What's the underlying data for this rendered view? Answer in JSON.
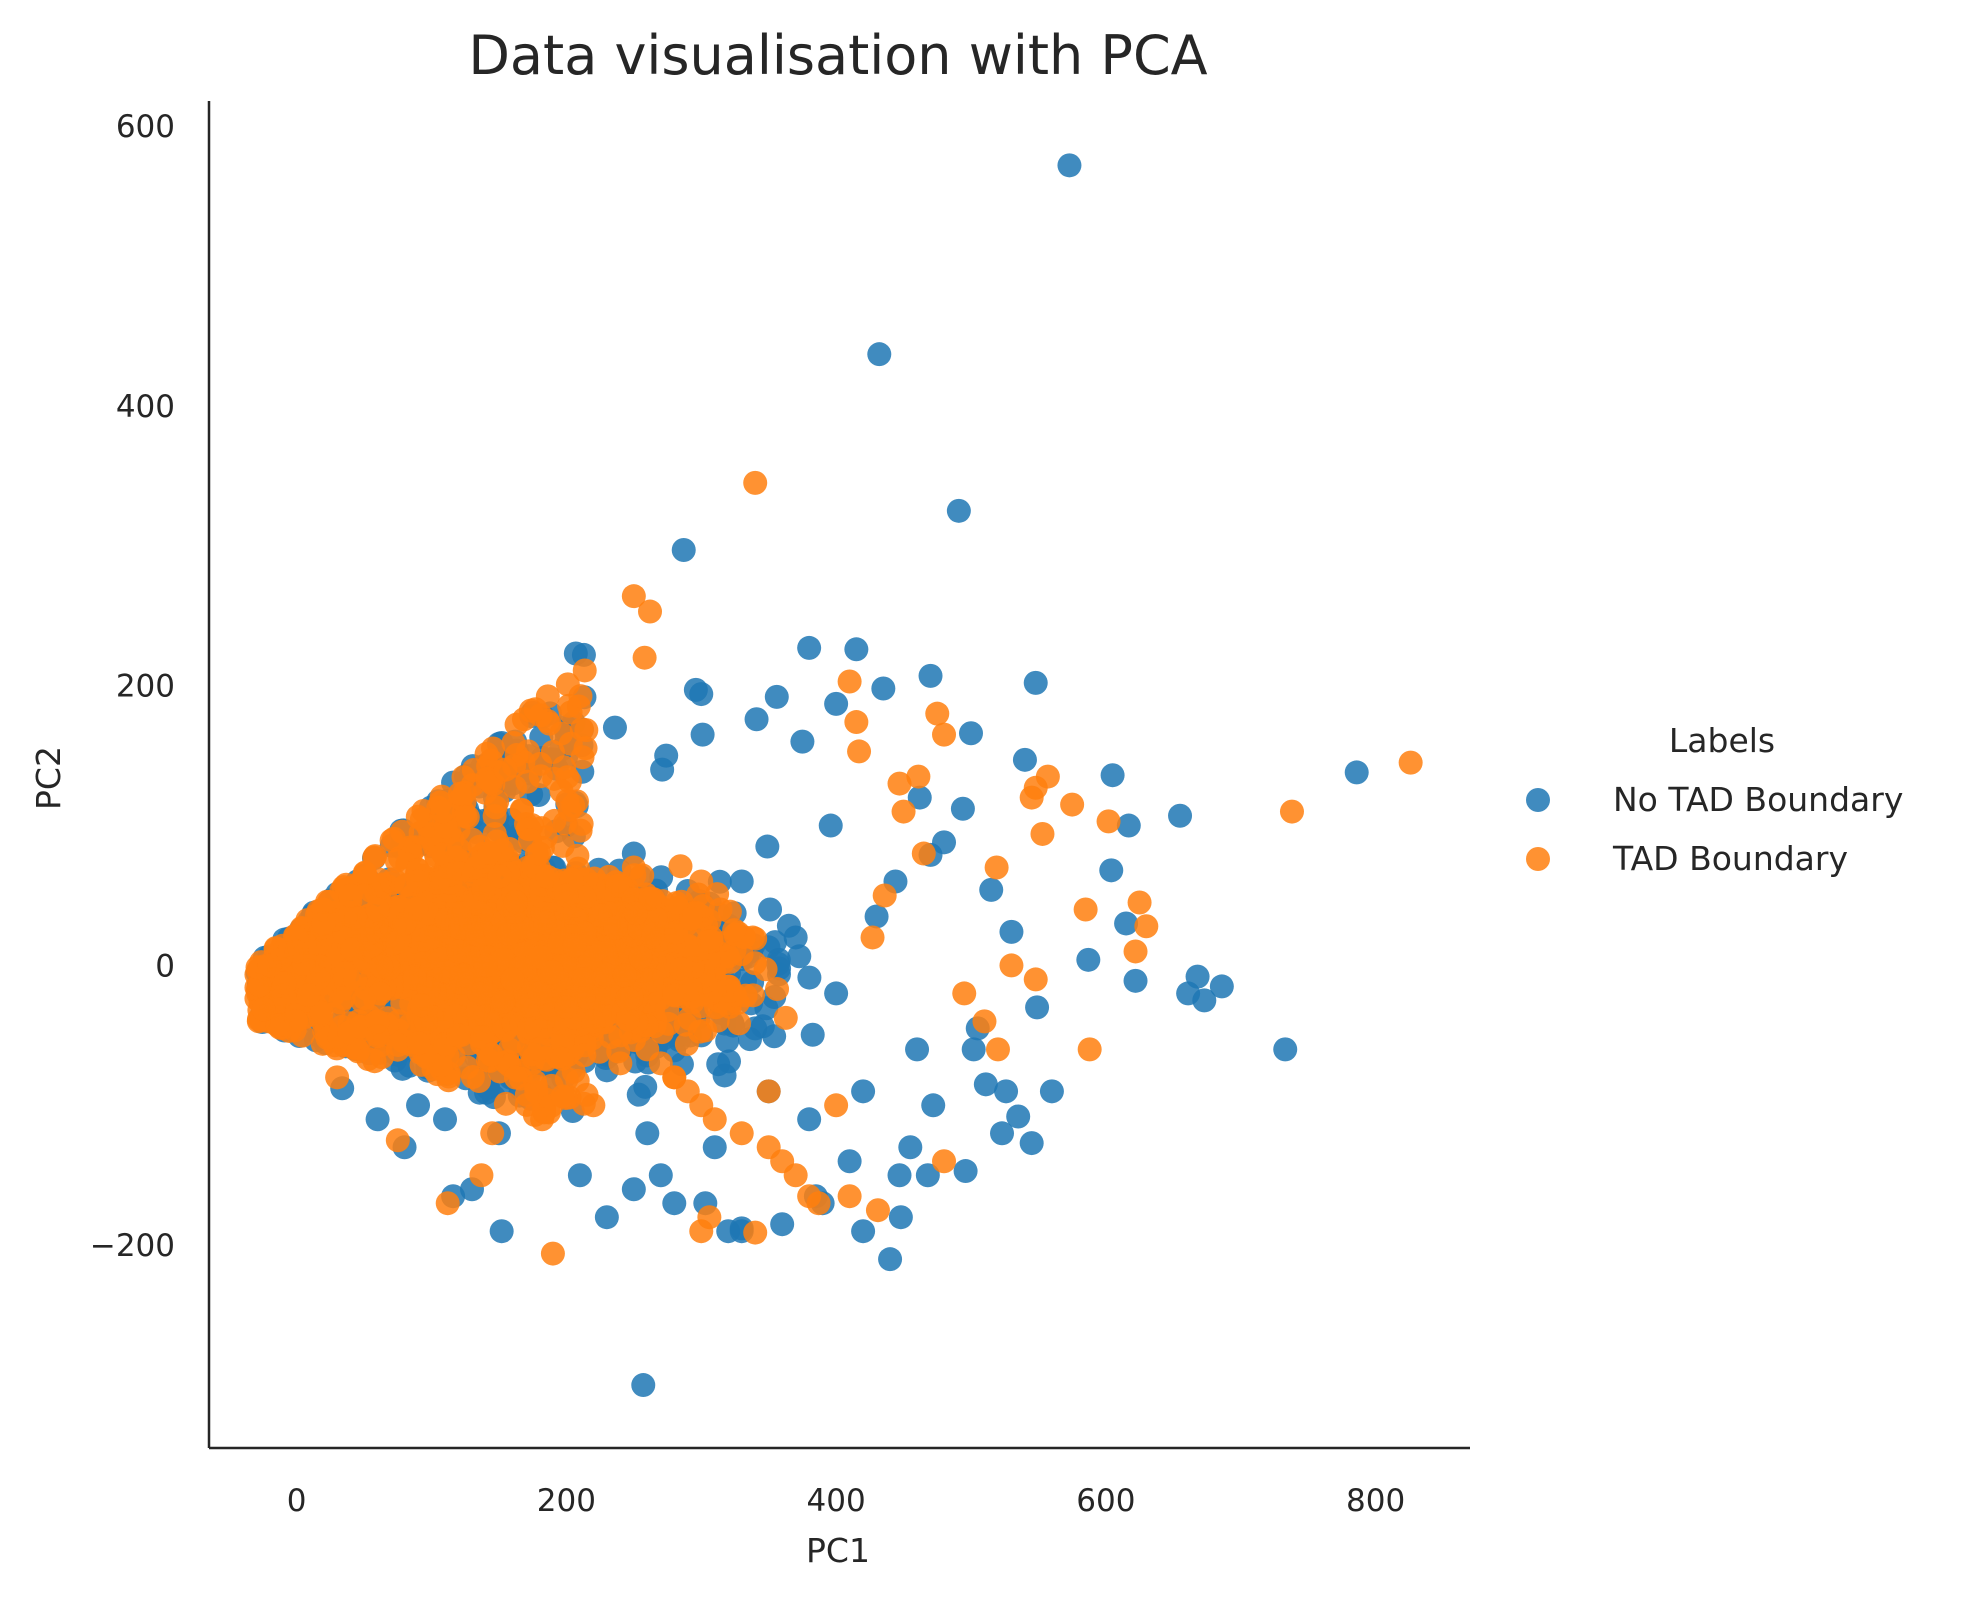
{
  "chart_data": {
    "type": "scatter",
    "title": "Data visualisation with PCA",
    "xlabel": "PC1",
    "ylabel": "PC2",
    "xlim": [
      -65,
      870
    ],
    "ylim": [
      -345,
      618
    ],
    "xticks": [
      0,
      200,
      400,
      600,
      800
    ],
    "yticks": [
      -200,
      0,
      200,
      400,
      600
    ],
    "xtick_labels": [
      "0",
      "200",
      "400",
      "600",
      "800"
    ],
    "ytick_labels": [
      "−200",
      "0",
      "200",
      "400",
      "600"
    ],
    "grid": false,
    "legend": {
      "title": "Labels",
      "placement": "outside right",
      "entries": [
        "No TAD Boundary",
        "TAD Boundary"
      ]
    },
    "series": [
      {
        "name": "No TAD Boundary",
        "color": "#1f77b4",
        "x": [
          573,
          432,
          491,
          287,
          786,
          380,
          415,
          470,
          548,
          435,
          296,
          300,
          341,
          356,
          400,
          207,
          213,
          605,
          655,
          500,
          540,
          494,
          617,
          515,
          530,
          480,
          604,
          587,
          622,
          615,
          661,
          668,
          673,
          686,
          733,
          526,
          535,
          545,
          496,
          455,
          420,
          440,
          468,
          448,
          472,
          511,
          505,
          549,
          502,
          430,
          444,
          470,
          462,
          349,
          351,
          337,
          396,
          375,
          271,
          274,
          301,
          236,
          190,
          200,
          170,
          162,
          147,
          134,
          120,
          102,
          93,
          75,
          60,
          50,
          40,
          30,
          20,
          10,
          0,
          -20,
          250,
          230,
          210,
          260,
          280,
          320,
          330,
          360,
          390,
          410,
          150,
          110,
          130,
          80,
          90,
          310,
          270,
          380,
          420,
          160,
          100,
          350,
          240,
          300,
          70,
          120,
          180,
          230,
          290,
          340,
          460,
          400,
          370,
          330,
          250,
          200,
          140,
          60,
          20,
          -10,
          560,
          523,
          385,
          447,
          330,
          303,
          257,
          152,
          116,
          60
        ],
        "y": [
          572,
          437,
          325,
          297,
          138,
          227,
          226,
          207,
          202,
          198,
          197,
          194,
          176,
          192,
          187,
          223,
          222,
          136,
          107,
          166,
          147,
          112,
          100,
          54,
          24,
          88,
          68,
          4,
          -11,
          30,
          -20,
          -8,
          -25,
          -15,
          -60,
          -90,
          -108,
          -127,
          -147,
          -130,
          -190,
          -210,
          -150,
          -180,
          -100,
          -85,
          -45,
          -30,
          -60,
          35,
          60,
          79,
          120,
          85,
          40,
          10,
          100,
          160,
          140,
          150,
          165,
          170,
          70,
          100,
          90,
          160,
          120,
          95,
          80,
          60,
          45,
          30,
          25,
          15,
          10,
          5,
          0,
          -10,
          -5,
          -20,
          -160,
          -180,
          -150,
          -120,
          -170,
          -190,
          -188,
          -185,
          -170,
          -140,
          -120,
          -110,
          -160,
          -130,
          -100,
          -130,
          -150,
          -110,
          -90,
          -80,
          -70,
          -90,
          -60,
          -50,
          -40,
          -30,
          -50,
          -75,
          -40,
          -45,
          -60,
          -20,
          20,
          60,
          80,
          50,
          30,
          20,
          10,
          -40,
          -90,
          -120,
          -165,
          -150,
          -190,
          -170,
          -300,
          -190,
          -165,
          -110
        ]
      },
      {
        "name": "TAD Boundary",
        "color": "#ff7f0e",
        "x": [
          340,
          826,
          250,
          262,
          258,
          410,
          415,
          475,
          480,
          417,
          557,
          548,
          575,
          545,
          602,
          625,
          630,
          519,
          738,
          553,
          585,
          622,
          588,
          447,
          461,
          450,
          465,
          436,
          427,
          530,
          548,
          510,
          495,
          520,
          480,
          380,
          370,
          360,
          350,
          330,
          310,
          300,
          290,
          280,
          270,
          260,
          240,
          220,
          200,
          180,
          160,
          140,
          120,
          100,
          80,
          60,
          40,
          20,
          0,
          -20,
          300,
          340,
          306,
          387,
          410,
          431,
          190,
          182,
          145,
          137,
          112,
          75,
          30,
          220,
          400,
          350,
          280,
          240,
          180,
          120,
          60,
          200,
          300,
          250,
          180,
          130,
          90,
          50,
          20,
          0
        ],
        "y": [
          345,
          145,
          264,
          253,
          220,
          203,
          174,
          180,
          165,
          153,
          135,
          127,
          115,
          120,
          103,
          45,
          28,
          70,
          110,
          94,
          40,
          10,
          -60,
          130,
          135,
          110,
          80,
          50,
          20,
          0,
          -10,
          -40,
          -20,
          -60,
          -140,
          -165,
          -150,
          -140,
          -130,
          -120,
          -110,
          -100,
          -90,
          -80,
          -70,
          -60,
          -50,
          -40,
          -30,
          -20,
          -10,
          0,
          10,
          20,
          30,
          40,
          50,
          40,
          20,
          0,
          -190,
          -191,
          -180,
          -170,
          -165,
          -175,
          -206,
          -110,
          -120,
          -150,
          -170,
          -125,
          -80,
          -100,
          -100,
          -90,
          -80,
          -70,
          -60,
          -50,
          -40,
          50,
          60,
          70,
          80,
          90,
          60,
          50,
          30,
          10
        ],
        "dense_region": {
          "note": "",
          "x": [
            -30,
            430
          ],
          "y": [
            -130,
            130
          ]
        }
      }
    ]
  }
}
